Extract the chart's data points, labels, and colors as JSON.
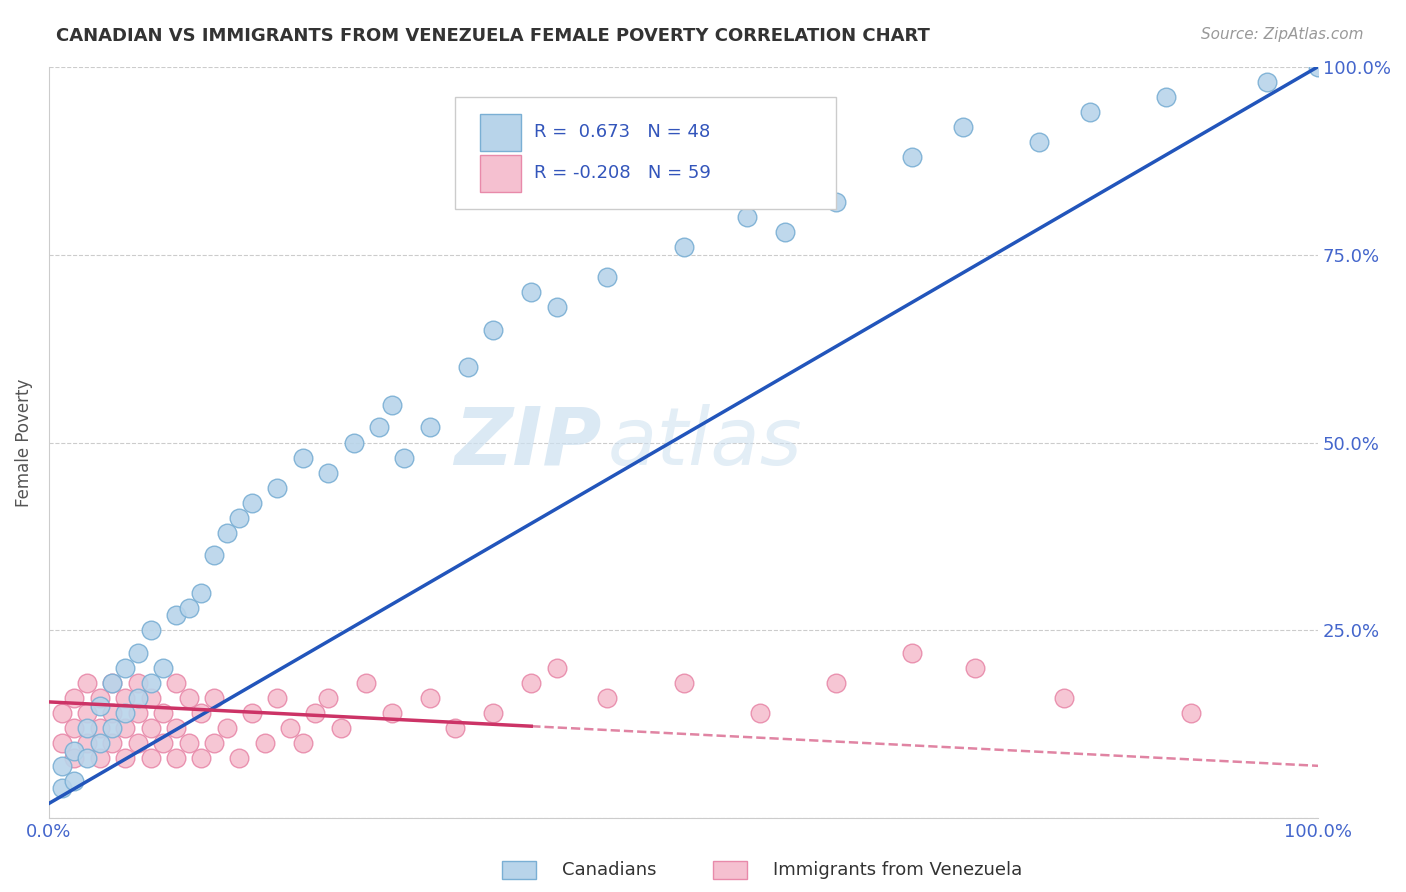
{
  "title": "CANADIAN VS IMMIGRANTS FROM VENEZUELA FEMALE POVERTY CORRELATION CHART",
  "source": "Source: ZipAtlas.com",
  "ylabel": "Female Poverty",
  "r_canadian": 0.673,
  "n_canadian": 48,
  "r_venezuela": -0.208,
  "n_venezuela": 59,
  "canadian_color": "#b8d4ea",
  "canadian_edge": "#7aafd4",
  "venezuela_color": "#f5c0d0",
  "venezuela_edge": "#e88aaa",
  "line_canadian": "#2255bb",
  "line_venezuela": "#cc3366",
  "legend_canadians": "Canadians",
  "legend_venezuela": "Immigrants from Venezuela",
  "xlim": [
    0,
    1
  ],
  "ylim": [
    0,
    1
  ],
  "xticks": [
    0.0,
    0.25,
    0.5,
    0.75,
    1.0
  ],
  "xtick_labels": [
    "0.0%",
    "",
    "",
    "",
    "100.0%"
  ],
  "yticks": [
    0.0,
    0.25,
    0.5,
    0.75,
    1.0
  ],
  "ytick_labels": [
    "",
    "25.0%",
    "50.0%",
    "75.0%",
    "100.0%"
  ],
  "canadian_x": [
    0.01,
    0.01,
    0.02,
    0.02,
    0.03,
    0.03,
    0.04,
    0.04,
    0.05,
    0.05,
    0.06,
    0.06,
    0.07,
    0.07,
    0.08,
    0.08,
    0.09,
    0.1,
    0.11,
    0.12,
    0.13,
    0.14,
    0.15,
    0.16,
    0.18,
    0.2,
    0.22,
    0.24,
    0.26,
    0.27,
    0.28,
    0.3,
    0.33,
    0.35,
    0.38,
    0.4,
    0.44,
    0.5,
    0.55,
    0.58,
    0.62,
    0.68,
    0.72,
    0.78,
    0.82,
    0.88,
    0.96,
    1.0
  ],
  "canadian_y": [
    0.04,
    0.07,
    0.05,
    0.09,
    0.08,
    0.12,
    0.1,
    0.15,
    0.12,
    0.18,
    0.14,
    0.2,
    0.16,
    0.22,
    0.18,
    0.25,
    0.2,
    0.27,
    0.28,
    0.3,
    0.35,
    0.38,
    0.4,
    0.42,
    0.44,
    0.48,
    0.46,
    0.5,
    0.52,
    0.55,
    0.48,
    0.52,
    0.6,
    0.65,
    0.7,
    0.68,
    0.72,
    0.76,
    0.8,
    0.78,
    0.82,
    0.88,
    0.92,
    0.9,
    0.94,
    0.96,
    0.98,
    1.0
  ],
  "venezuela_x": [
    0.01,
    0.01,
    0.02,
    0.02,
    0.02,
    0.03,
    0.03,
    0.03,
    0.04,
    0.04,
    0.04,
    0.05,
    0.05,
    0.05,
    0.06,
    0.06,
    0.06,
    0.07,
    0.07,
    0.07,
    0.08,
    0.08,
    0.08,
    0.09,
    0.09,
    0.1,
    0.1,
    0.1,
    0.11,
    0.11,
    0.12,
    0.12,
    0.13,
    0.13,
    0.14,
    0.15,
    0.16,
    0.17,
    0.18,
    0.19,
    0.2,
    0.21,
    0.22,
    0.23,
    0.25,
    0.27,
    0.3,
    0.32,
    0.35,
    0.38,
    0.4,
    0.44,
    0.5,
    0.56,
    0.62,
    0.68,
    0.73,
    0.8,
    0.9
  ],
  "venezuela_y": [
    0.1,
    0.14,
    0.08,
    0.12,
    0.16,
    0.1,
    0.14,
    0.18,
    0.08,
    0.12,
    0.16,
    0.1,
    0.14,
    0.18,
    0.08,
    0.12,
    0.16,
    0.1,
    0.14,
    0.18,
    0.08,
    0.12,
    0.16,
    0.1,
    0.14,
    0.08,
    0.12,
    0.18,
    0.1,
    0.16,
    0.08,
    0.14,
    0.1,
    0.16,
    0.12,
    0.08,
    0.14,
    0.1,
    0.16,
    0.12,
    0.1,
    0.14,
    0.16,
    0.12,
    0.18,
    0.14,
    0.16,
    0.12,
    0.14,
    0.18,
    0.2,
    0.16,
    0.18,
    0.14,
    0.18,
    0.22,
    0.2,
    0.16,
    0.14
  ],
  "line_c_x0": 0.0,
  "line_c_y0": 0.02,
  "line_c_x1": 1.0,
  "line_c_y1": 1.0,
  "line_v_x0": 0.0,
  "line_v_y0": 0.155,
  "line_v_x1": 1.0,
  "line_v_y1": 0.07,
  "line_v_solid_end": 0.38,
  "line_v_dash_start": 0.38
}
